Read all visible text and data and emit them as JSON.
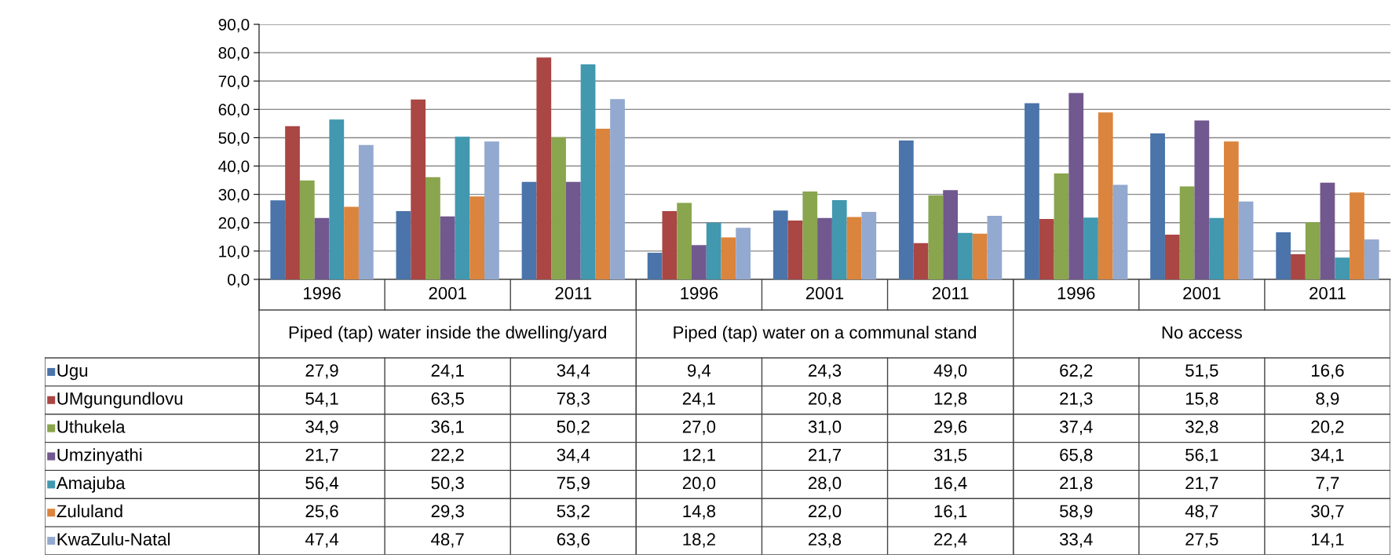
{
  "chart_data": {
    "type": "bar",
    "categories": [
      "1996",
      "2001",
      "2011",
      "1996",
      "2001",
      "2011",
      "1996",
      "2001",
      "2011"
    ],
    "annotations": [
      "Piped (tap) water inside the dwelling/yard",
      "Piped (tap) water on a communal stand",
      "No access"
    ],
    "series": [
      {
        "name": "Ugu",
        "color": "#4a74aa",
        "values": [
          27.9,
          24.1,
          34.4,
          9.4,
          24.3,
          49.0,
          62.2,
          51.5,
          16.6
        ],
        "value_labels": [
          "27,9",
          "24,1",
          "34,4",
          "9,4",
          "24,3",
          "49,0",
          "62,2",
          "51,5",
          "16,6"
        ]
      },
      {
        "name": "UMgungundlovu",
        "color": "#aa4643",
        "values": [
          54.1,
          63.5,
          78.3,
          24.1,
          20.8,
          12.8,
          21.3,
          15.8,
          8.9
        ],
        "value_labels": [
          "54,1",
          "63,5",
          "78,3",
          "24,1",
          "20,8",
          "12,8",
          "21,3",
          "15,8",
          "8,9"
        ]
      },
      {
        "name": "Uthukela",
        "color": "#89a54e",
        "values": [
          34.9,
          36.1,
          50.2,
          27.0,
          31.0,
          29.6,
          37.4,
          32.8,
          20.2
        ],
        "value_labels": [
          "34,9",
          "36,1",
          "50,2",
          "27,0",
          "31,0",
          "29,6",
          "37,4",
          "32,8",
          "20,2"
        ]
      },
      {
        "name": "Umzinyathi",
        "color": "#71588f",
        "values": [
          21.7,
          22.2,
          34.4,
          12.1,
          21.7,
          31.5,
          65.8,
          56.1,
          34.1
        ],
        "value_labels": [
          "21,7",
          "22,2",
          "34,4",
          "12,1",
          "21,7",
          "31,5",
          "65,8",
          "56,1",
          "34,1"
        ]
      },
      {
        "name": "Amajuba",
        "color": "#4198af",
        "values": [
          56.4,
          50.3,
          75.9,
          20.0,
          28.0,
          16.4,
          21.8,
          21.7,
          7.7
        ],
        "value_labels": [
          "56,4",
          "50,3",
          "75,9",
          "20,0",
          "28,0",
          "16,4",
          "21,8",
          "21,7",
          "7,7"
        ]
      },
      {
        "name": "Zululand",
        "color": "#db843d",
        "values": [
          25.6,
          29.3,
          53.2,
          14.8,
          22.0,
          16.1,
          58.9,
          48.7,
          30.7
        ],
        "value_labels": [
          "25,6",
          "29,3",
          "53,2",
          "14,8",
          "22,0",
          "16,1",
          "58,9",
          "48,7",
          "30,7"
        ]
      },
      {
        "name": "KwaZulu-Natal",
        "color": "#93a9cf",
        "values": [
          47.4,
          48.7,
          63.6,
          18.2,
          23.8,
          22.4,
          33.4,
          27.5,
          14.1
        ],
        "value_labels": [
          "47,4",
          "48,7",
          "63,6",
          "18,2",
          "23,8",
          "22,4",
          "33,4",
          "27,5",
          "14,1"
        ]
      }
    ],
    "ylim": [
      0,
      90
    ],
    "yticks": [
      {
        "value": 0,
        "label": "0,0"
      },
      {
        "value": 10,
        "label": "10,0"
      },
      {
        "value": 20,
        "label": "20,0"
      },
      {
        "value": 30,
        "label": "30,0"
      },
      {
        "value": 40,
        "label": "40,0"
      },
      {
        "value": 50,
        "label": "50,0"
      },
      {
        "value": 60,
        "label": "60,0"
      },
      {
        "value": 70,
        "label": "70,0"
      },
      {
        "value": 80,
        "label": "80,0"
      },
      {
        "value": 90,
        "label": "90,0"
      }
    ],
    "grid": "y",
    "legend": "left"
  }
}
